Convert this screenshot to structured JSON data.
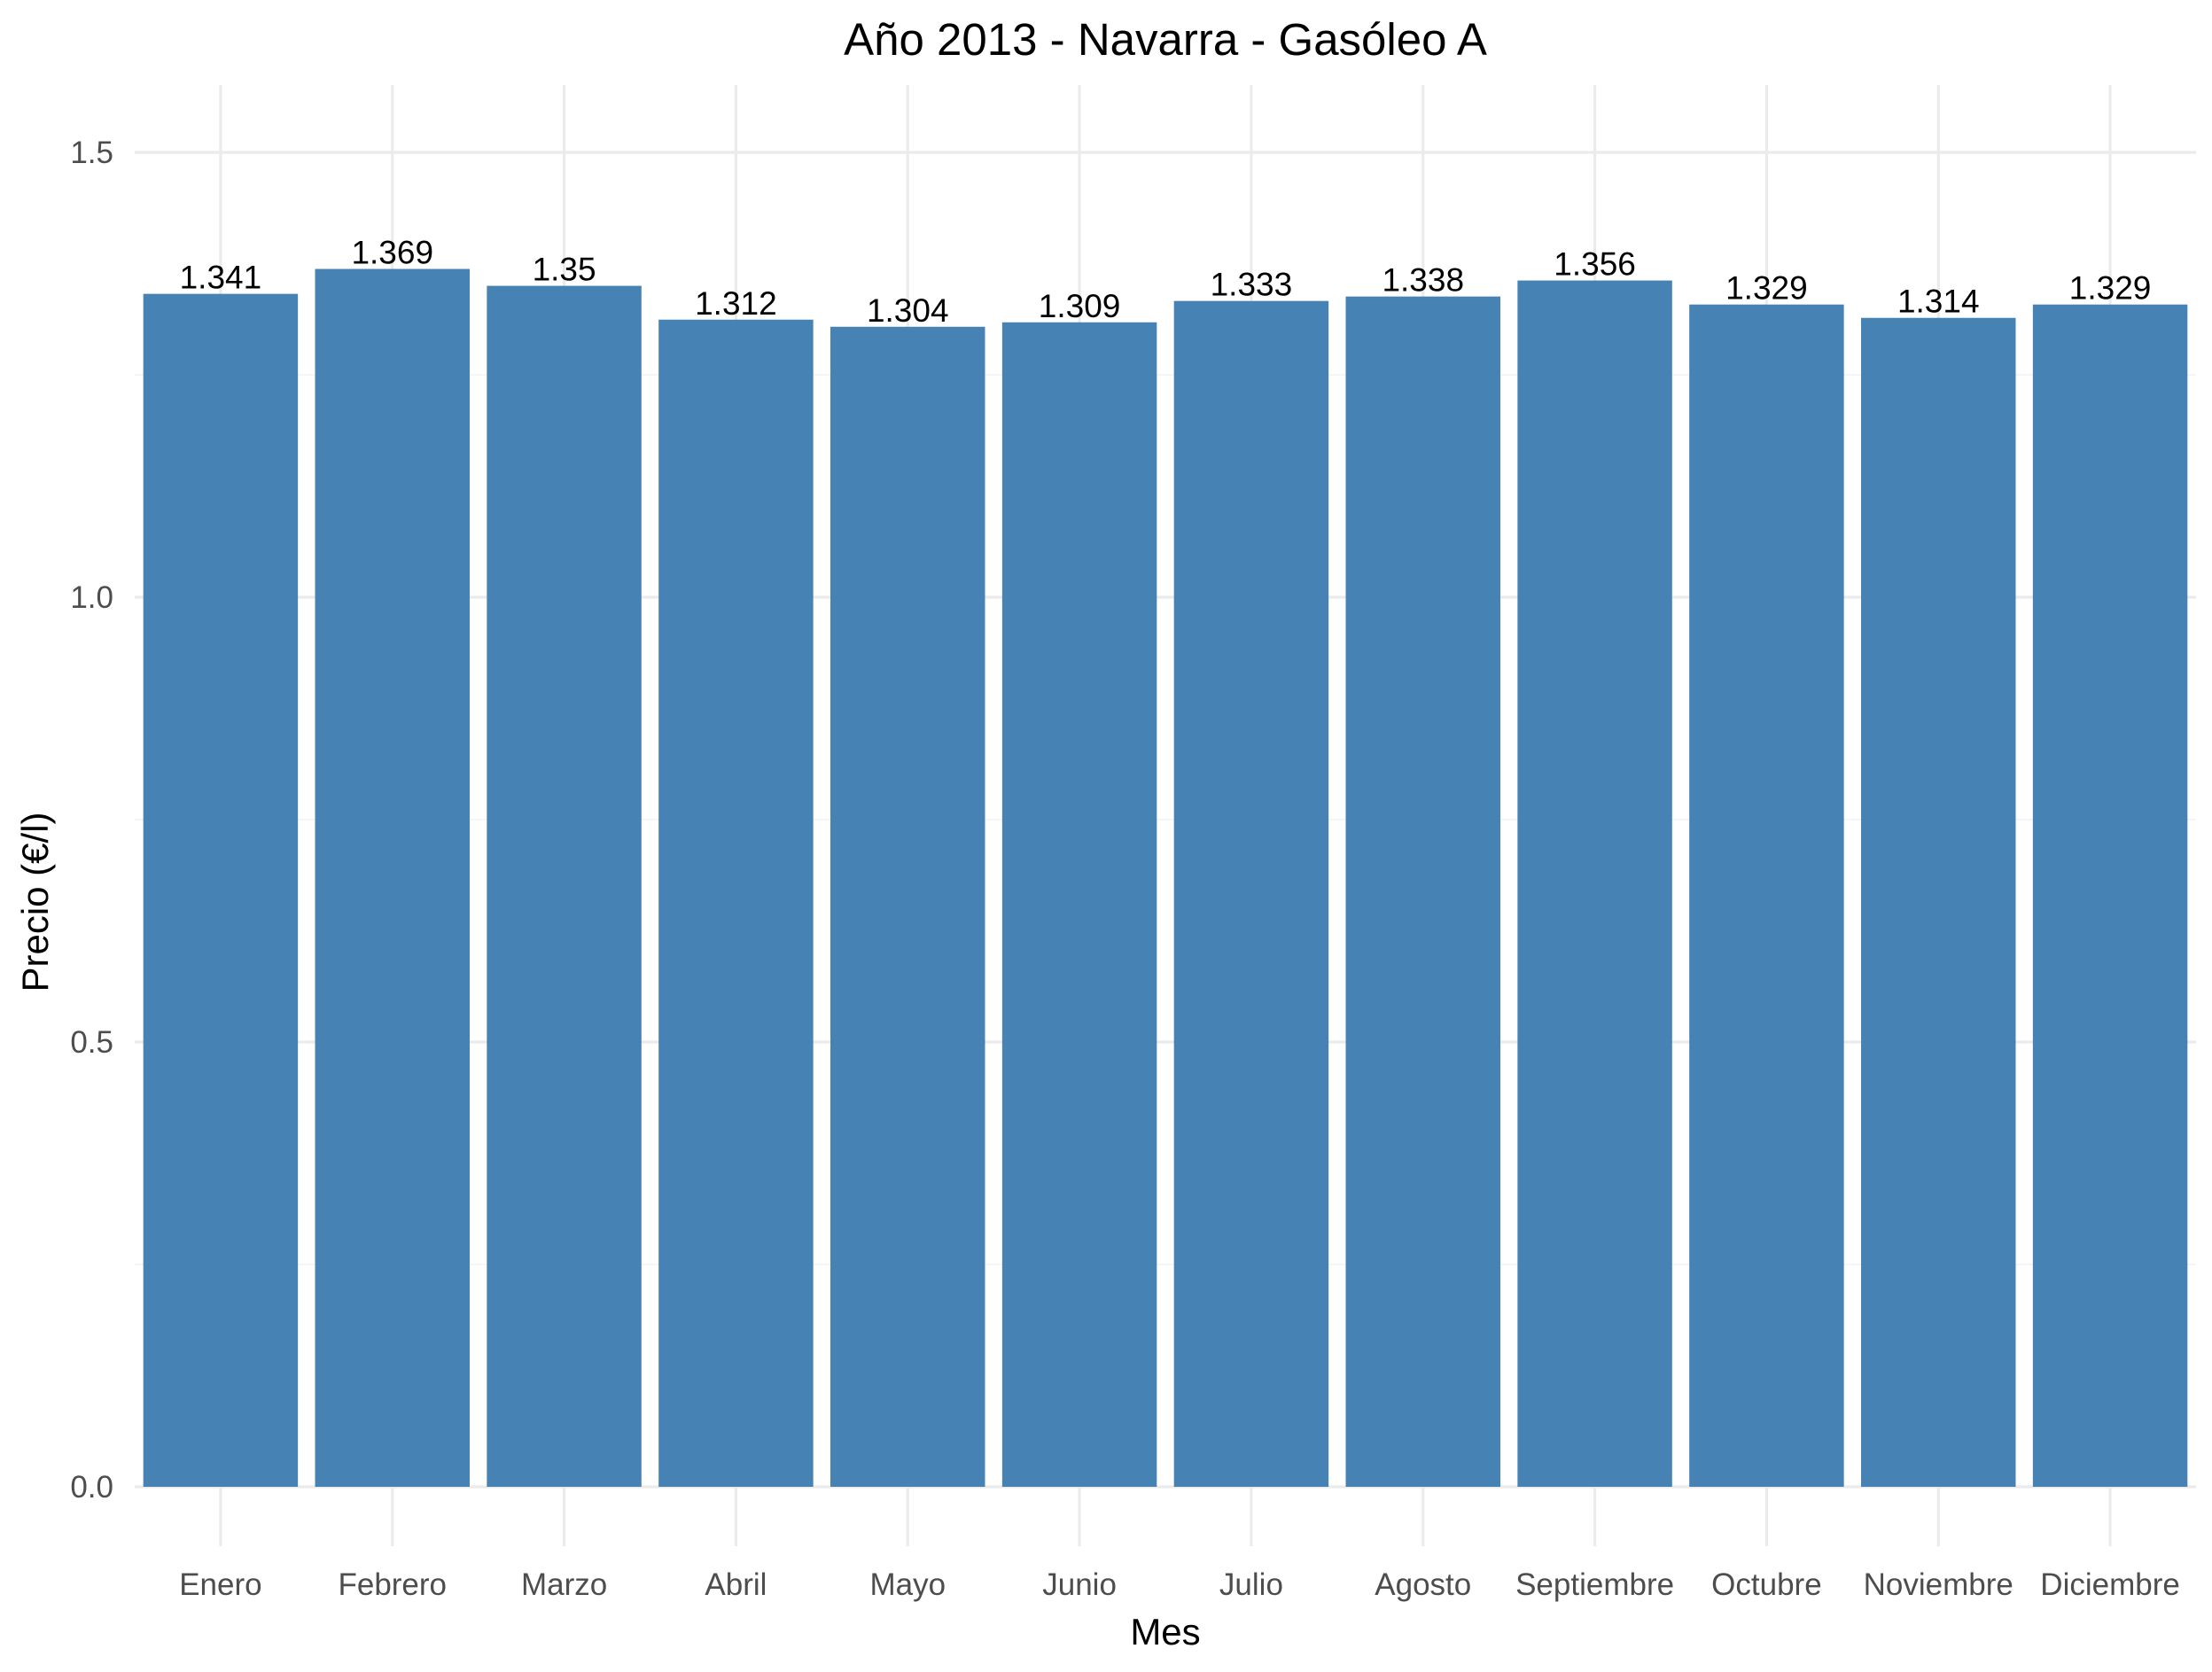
{
  "chart_data": {
    "type": "bar",
    "title": "Año 2013 - Navarra - Gasóleo A",
    "xlabel": "Mes",
    "ylabel": "Precio (€/l)",
    "categories": [
      "Enero",
      "Febrero",
      "Marzo",
      "Abril",
      "Mayo",
      "Junio",
      "Julio",
      "Agosto",
      "Septiembre",
      "Octubre",
      "Noviembre",
      "Diciembre"
    ],
    "values": [
      1.341,
      1.369,
      1.35,
      1.312,
      1.304,
      1.309,
      1.333,
      1.338,
      1.356,
      1.329,
      1.314,
      1.329
    ],
    "value_labels": [
      "1.341",
      "1.369",
      "1.35",
      "1.312",
      "1.304",
      "1.309",
      "1.333",
      "1.338",
      "1.356",
      "1.329",
      "1.314",
      "1.329"
    ],
    "yticks": [
      0.0,
      0.5,
      1.0,
      1.5
    ],
    "ytick_labels": [
      "0.0",
      "0.5",
      "1.0",
      "1.5"
    ],
    "ylim": [
      0,
      1.5
    ],
    "bar_color": "#4682B4",
    "grid": true,
    "legend": "none"
  }
}
